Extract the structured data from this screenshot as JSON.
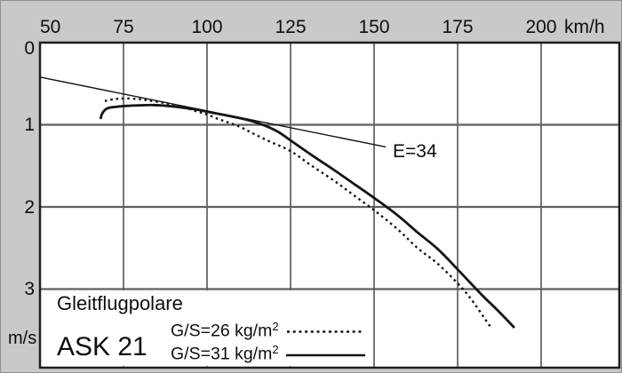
{
  "chart": {
    "title": "Gleitflugpolare",
    "model": "ASK 21",
    "x_unit": "km/h",
    "y_unit": "m/s",
    "efficiency_label": "E=34",
    "x_ticks": [
      50,
      75,
      100,
      125,
      150,
      175,
      200
    ],
    "y_ticks": [
      0,
      1,
      2,
      3
    ]
  },
  "legend": [
    {
      "label_base": "G/S=26 kg/m",
      "label_sup": "2",
      "style": "dotted"
    },
    {
      "label_base": "G/S=31 kg/m",
      "label_sup": "2",
      "style": "solid"
    }
  ],
  "colors": {
    "background": "#c9c9c9",
    "plot_background": "#ffffff",
    "ink": "#141414",
    "grid_vertical": "#2e2e2e",
    "grid_horizontal": "#5f5f5f",
    "border": "#1f1f1f"
  },
  "chart_data": {
    "type": "line",
    "title": "Gleitflugpolare ASK 21 (glide polar)",
    "xlabel": "km/h",
    "ylabel": "m/s",
    "x_range": [
      50,
      223
    ],
    "y_range": [
      0,
      4
    ],
    "y_axis_inverted_downward": true,
    "x_ticks": [
      50,
      75,
      100,
      125,
      150,
      175,
      200
    ],
    "y_ticks": [
      0,
      1,
      2,
      3
    ],
    "grid": true,
    "legend_position": "bottom-left",
    "series": [
      {
        "name": "G/S=26 kg/m2",
        "style": "dotted",
        "points": [
          [
            69.4,
            0.71
          ],
          [
            72,
            0.69
          ],
          [
            75,
            0.68
          ],
          [
            79,
            0.685
          ],
          [
            82,
            0.7
          ],
          [
            86,
            0.725
          ],
          [
            90,
            0.757
          ],
          [
            94,
            0.8
          ],
          [
            97,
            0.838
          ],
          [
            100,
            0.875
          ],
          [
            104,
            0.94
          ],
          [
            109,
            1.01
          ],
          [
            113,
            1.09
          ],
          [
            118,
            1.19
          ],
          [
            125,
            1.32
          ],
          [
            131,
            1.49
          ],
          [
            138,
            1.68
          ],
          [
            144,
            1.86
          ],
          [
            150,
            2.04
          ],
          [
            157,
            2.27
          ],
          [
            163,
            2.5
          ],
          [
            169,
            2.69
          ],
          [
            175,
            2.93
          ],
          [
            179,
            3.12
          ],
          [
            185,
            3.47
          ]
        ]
      },
      {
        "name": "G/S=31 kg/m2",
        "style": "solid",
        "points": [
          [
            68.1,
            0.93
          ],
          [
            68.5,
            0.875
          ],
          [
            69.3,
            0.825
          ],
          [
            70.5,
            0.795
          ],
          [
            73,
            0.78
          ],
          [
            76,
            0.77
          ],
          [
            80,
            0.763
          ],
          [
            84,
            0.76
          ],
          [
            88,
            0.77
          ],
          [
            92,
            0.787
          ],
          [
            96,
            0.81
          ],
          [
            100,
            0.84
          ],
          [
            105,
            0.88
          ],
          [
            111,
            0.93
          ],
          [
            116,
            0.99
          ],
          [
            121,
            1.08
          ],
          [
            125,
            1.19
          ],
          [
            131,
            1.36
          ],
          [
            138,
            1.55
          ],
          [
            144,
            1.72
          ],
          [
            150,
            1.89
          ],
          [
            157,
            2.1
          ],
          [
            163,
            2.31
          ],
          [
            169,
            2.51
          ],
          [
            175,
            2.76
          ],
          [
            182,
            3.06
          ],
          [
            187,
            3.26
          ],
          [
            192,
            3.47
          ]
        ]
      }
    ],
    "tangent_line": {
      "label": "E=34",
      "from": [
        50,
        0.42
      ],
      "to": [
        153.5,
        1.27
      ]
    }
  }
}
